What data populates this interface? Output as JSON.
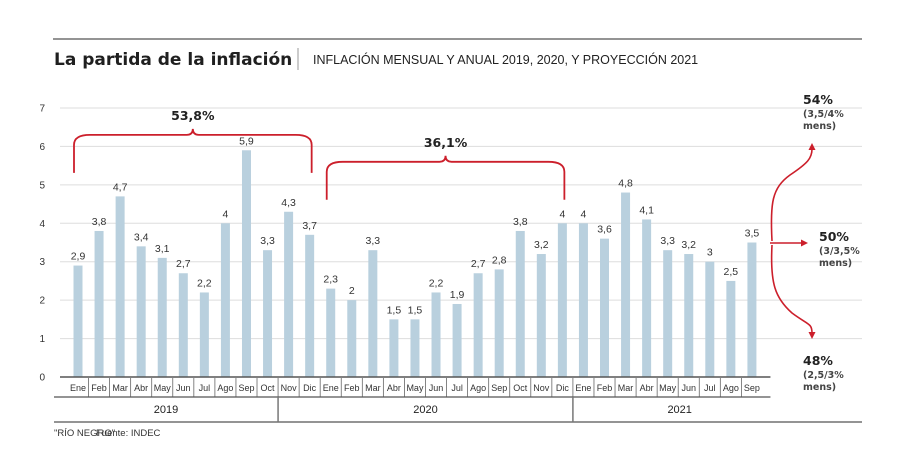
{
  "header": {
    "title": "La partida de la inflación",
    "subtitle": "INFLACIÓN MENSUAL Y ANUAL 2019, 2020, Y PROYECCIÓN 2021"
  },
  "footer": {
    "credit": "\"RÍO NEGRO\"",
    "source": "Fuente: INDEC"
  },
  "colors": {
    "bar": "#b9d0de",
    "accent": "#cc1f2b",
    "grid": "#dddddd",
    "axis": "#555555"
  },
  "chart_data": {
    "type": "bar",
    "title": "La partida de la inflación",
    "subtitle": "INFLACIÓN MENSUAL Y ANUAL 2019, 2020, Y PROYECCIÓN 2021",
    "xlabel": "",
    "ylabel": "",
    "ylim": [
      0,
      7
    ],
    "yticks": [
      "0",
      "1",
      "2",
      "3",
      "4",
      "5",
      "6",
      "7"
    ],
    "grid": true,
    "categories": [
      "Ene",
      "Feb",
      "Mar",
      "Abr",
      "May",
      "Jun",
      "Jul",
      "Ago",
      "Sep",
      "Oct",
      "Nov",
      "Dic",
      "Ene",
      "Feb",
      "Mar",
      "Abr",
      "May",
      "Jun",
      "Jul",
      "Ago",
      "Sep",
      "Oct",
      "Nov",
      "Dic",
      "Ene",
      "Feb",
      "Mar",
      "Abr",
      "May",
      "Jun",
      "Jul",
      "Ago",
      "Sep"
    ],
    "values": [
      2.9,
      3.8,
      4.7,
      3.4,
      3.1,
      2.7,
      2.2,
      4,
      5.9,
      3.3,
      4.3,
      3.7,
      2.3,
      2,
      3.3,
      1.5,
      1.5,
      2.2,
      1.9,
      2.7,
      2.8,
      3.8,
      3.2,
      4,
      4,
      3.6,
      4.8,
      4.1,
      3.3,
      3.2,
      3,
      2.5,
      3.5
    ],
    "value_labels": [
      "2,9",
      "3,8",
      "4,7",
      "3,4",
      "3,1",
      "2,7",
      "2,2",
      "4",
      "5,9",
      "3,3",
      "4,3",
      "3,7",
      "2,3",
      "2",
      "3,3",
      "1,5",
      "1,5",
      "2,2",
      "1,9",
      "2,7",
      "2,8",
      "3,8",
      "3,2",
      "4",
      "4",
      "3,6",
      "4,8",
      "4,1",
      "3,3",
      "3,2",
      "3",
      "2,5",
      "3,5"
    ],
    "year_groups": [
      {
        "label": "2019",
        "start_index": 0,
        "end_index": 9
      },
      {
        "label": "2020",
        "start_index": 10,
        "end_index": 23
      },
      {
        "label": "2021",
        "start_index": 24,
        "end_index": 32
      }
    ],
    "annotations": {
      "braces": [
        {
          "label": "53,8%",
          "start_index": 0,
          "end_index": 11,
          "level": 6.3
        },
        {
          "label": "36,1%",
          "start_index": 12,
          "end_index": 23,
          "level": 5.6
        }
      ],
      "projections": [
        {
          "main": "54%",
          "line1": "(3,5/4%",
          "line2": "mens)",
          "direction": "up"
        },
        {
          "main": "50%",
          "line1": "(3/3,5%",
          "line2": "mens)",
          "direction": "right"
        },
        {
          "main": "48%",
          "line1": "(2,5/3%",
          "line2": "mens)",
          "direction": "down"
        }
      ]
    }
  }
}
